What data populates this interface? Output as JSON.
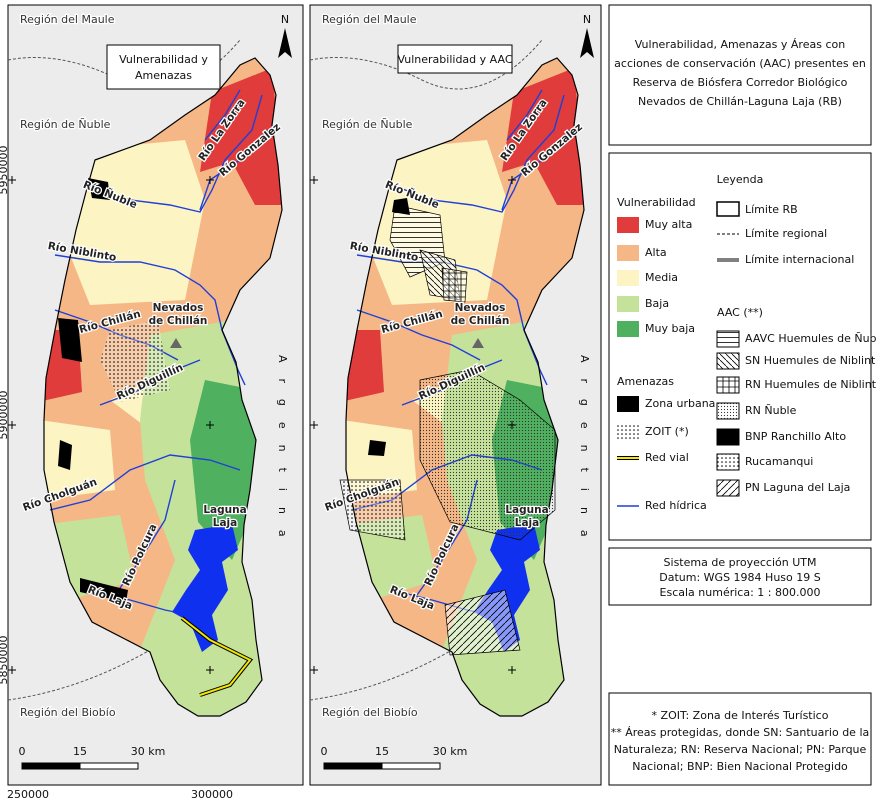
{
  "maps": [
    {
      "title": [
        "Vulnerabilidad y",
        "Amenazas"
      ],
      "regions": [
        "Región del Maule",
        "Región de Ñuble",
        "Región del Biobío"
      ],
      "north": "N",
      "rivers": [
        "Río Ñuble",
        "Río Niblinto",
        "Río Chillán",
        "Río Diguillín",
        "Río Cholguán",
        "Río Polcura",
        "Río Laja",
        "Río La Zorra",
        "Río Gonzalez"
      ],
      "volcano": [
        "Nevados",
        "de Chillán"
      ],
      "lake": [
        "Laguna",
        "Laja"
      ],
      "country": "Argentina",
      "scale": [
        "0",
        "15",
        "30 km"
      ],
      "northing": [
        "5950000",
        "5900000",
        "5850000"
      ]
    },
    {
      "title": [
        "Vulnerabilidad y AAC"
      ],
      "regions": [
        "Región del Maule",
        "Región de Ñuble",
        "Región del Biobío"
      ],
      "north": "N",
      "rivers": [
        "Río Ñuble",
        "Río Niblinto",
        "Río Chillán",
        "Río Diguillín",
        "Río Cholguán",
        "Río Polcura",
        "Río Laja",
        "Río La Zorra",
        "Río Gonzalez"
      ],
      "volcano": [
        "Nevados",
        "de Chillán"
      ],
      "lake": [
        "Laguna",
        "Laja"
      ],
      "country": "Argentina",
      "scale": [
        "0",
        "15",
        "30 km"
      ]
    }
  ],
  "easting": [
    "250000",
    "300000"
  ],
  "panel": {
    "title": [
      "Vulnerabilidad, Amenazas y Áreas con",
      "acciones de conservación (AAC) presentes en",
      "Reserva de Biósfera Corredor Biológico",
      "Nevados de Chillán-Laguna Laja (RB)"
    ],
    "legend": {
      "heading": "Leyenda",
      "vulnerability": {
        "heading": "Vulnerabilidad",
        "items": [
          "Muy alta",
          "Alta",
          "Media",
          "Baja",
          "Muy baja"
        ]
      },
      "threats": {
        "heading": "Amenazas",
        "items": [
          "Zona urbana",
          "ZOIT (*)",
          "Red vial",
          "Red hídrica"
        ]
      },
      "limits": [
        "Límite RB",
        "Límite regional",
        "Límite internacional"
      ],
      "aac": {
        "heading": "AAC (**)",
        "items": [
          "AAVC Huemules de Ñuble",
          "SN Huemules de Niblinto",
          "RN Huemules de Niblinto",
          "RN Ñuble",
          "BNP Ranchillo Alto",
          "Rucamanqui",
          "PN Laguna del Laja"
        ]
      }
    },
    "projection": [
      "Sistema de proyección UTM",
      "Datum: WGS 1984 Huso 19 S",
      "Escala numérica: 1 : 800.000"
    ],
    "notes": [
      "* ZOIT: Zona de Interés Turístico",
      "** Áreas protegidas, donde SN: Santuario de la",
      "Naturaleza; RN: Reserva Nacional; PN: Parque",
      "Nacional; BNP: Bien Nacional Protegido"
    ]
  }
}
